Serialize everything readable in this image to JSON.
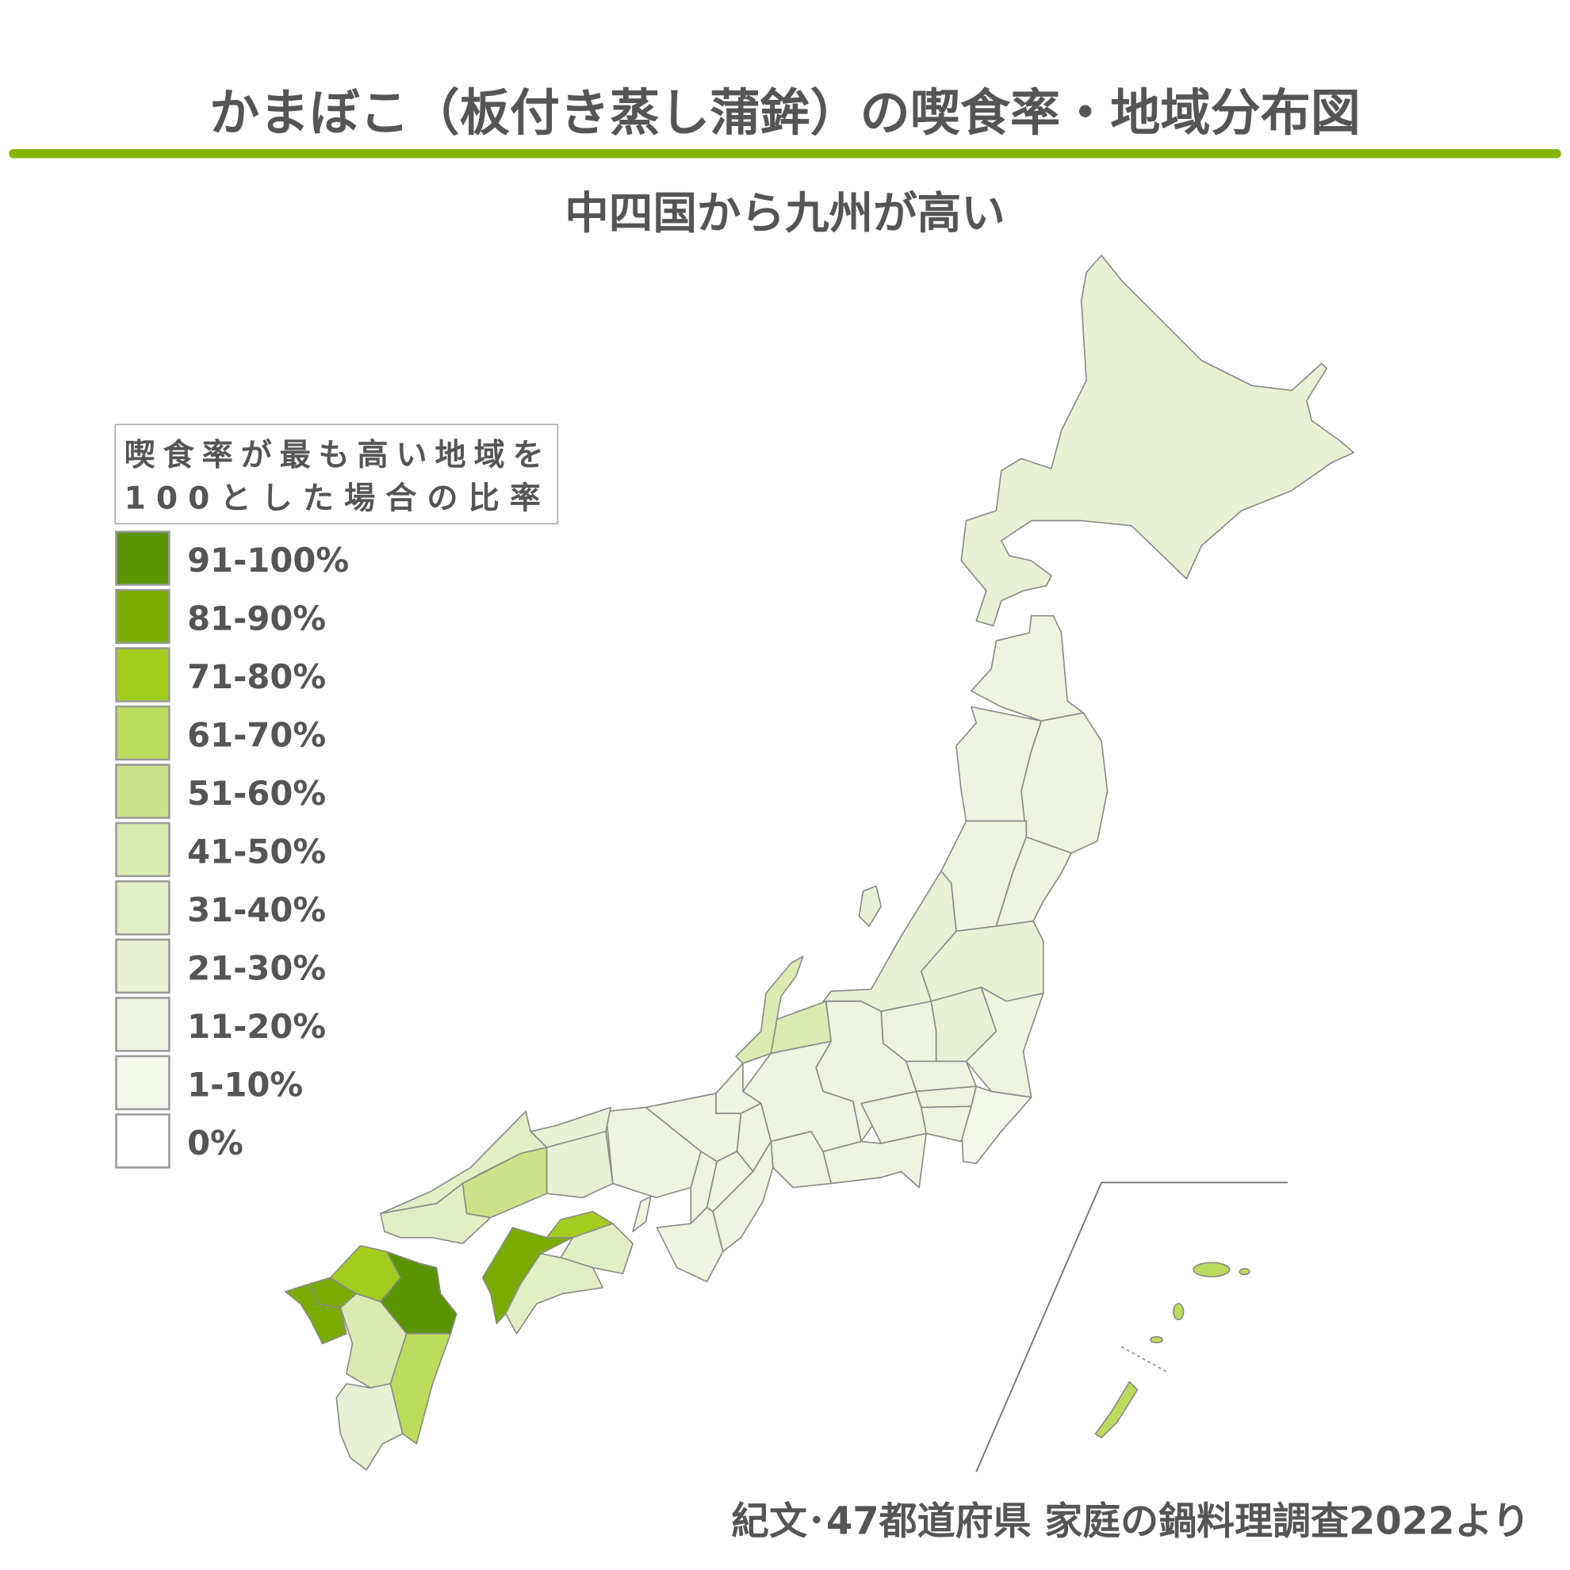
{
  "title": "かまぼこ（板付き蒸し蒲鉾）の喫食率・地域分布図",
  "subtitle": "中四国から九州が高い",
  "accent_color": "#84b400",
  "legend": {
    "heading_line1": "喫食率が最も高い地域を",
    "heading_line2": "100とした場合の比率",
    "items": [
      {
        "label": "91-100%",
        "color": "#5a9400"
      },
      {
        "label": "81-90%",
        "color": "#7aac00"
      },
      {
        "label": "71-80%",
        "color": "#a3cd1e"
      },
      {
        "label": "61-70%",
        "color": "#bcdb5c"
      },
      {
        "label": "51-60%",
        "color": "#cde288"
      },
      {
        "label": "41-50%",
        "color": "#dbeab0"
      },
      {
        "label": "31-40%",
        "color": "#e2eec4"
      },
      {
        "label": "21-30%",
        "color": "#e9f1d4"
      },
      {
        "label": "11-20%",
        "color": "#eef4e0"
      },
      {
        "label": "1-10%",
        "color": "#f3f6ea"
      },
      {
        "label": "0%",
        "color": "#ffffff"
      }
    ]
  },
  "map_levels": {
    "hokkaido": "21-30%",
    "aomori": "11-20%",
    "akita": "11-20%",
    "iwate": "11-20%",
    "yamagata": "11-20%",
    "miyagi": "11-20%",
    "fukushima": "21-30%",
    "niigata": "21-30%",
    "sado": "21-30%",
    "gunma": "11-20%",
    "tochigi": "21-30%",
    "ibaraki": "11-20%",
    "saitama": "11-20%",
    "tokyo": "11-20%",
    "chiba": "1-10%",
    "kanagawa": "11-20%",
    "toyama": "41-50%",
    "ishikawa": "41-50%",
    "nagano": "11-20%",
    "yamanashi": "11-20%",
    "shizuoka": "11-20%",
    "gifu": "11-20%",
    "aichi": "11-20%",
    "fukui": "11-20%",
    "shiga": "11-20%",
    "kyoto": "11-20%",
    "hyogo": "11-20%",
    "mie": "11-20%",
    "osaka": "11-20%",
    "nara": "11-20%",
    "wakayama": "11-20%",
    "awaji": "11-20%",
    "tottori": "21-30%",
    "okayama": "21-30%",
    "shimane": "31-40%",
    "hiroshima": "51-60%",
    "yamaguchi": "31-40%",
    "kagawa": "71-80%",
    "ehime": "81-90%",
    "tokushima": "31-40%",
    "kochi": "31-40%",
    "fukuoka": "71-80%",
    "oita": "91-100%",
    "saga": "81-90%",
    "nagasaki": "81-90%",
    "kumamoto": "41-50%",
    "miyazaki": "61-70%",
    "kagoshima": "21-30%",
    "okinawa": "61-70%"
  },
  "source": "紀文･47都道府県 家庭の鍋料理調査2022より"
}
